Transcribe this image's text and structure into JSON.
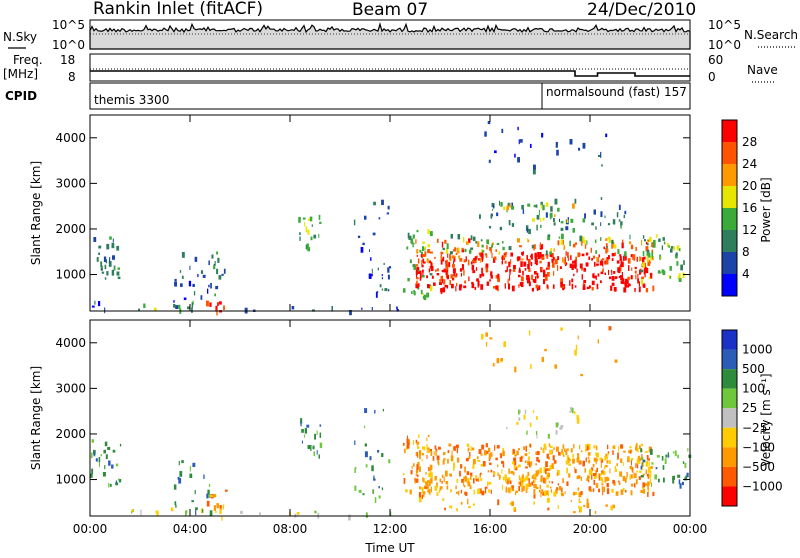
{
  "header": {
    "title": "Rankin Inlet (fitACF)",
    "beam": "Beam 07",
    "date": "24/Dec/2010"
  },
  "nsky": {
    "label": "N.Sky",
    "right_label": "N.Search",
    "ticks": [
      "10^5",
      "10^0"
    ]
  },
  "freq": {
    "label_line1": "Freq.",
    "label_line2": "[MHz]",
    "left_ticks": [
      "18",
      "8"
    ],
    "right_ticks": [
      "60",
      "0"
    ],
    "right_label": "Nave"
  },
  "cpid": {
    "label": "CPID",
    "segments": [
      {
        "text": "themis 3300"
      },
      {
        "text": "normalsound (fast) 157"
      }
    ]
  },
  "colors": {
    "power": [
      "#0000ff",
      "#1c44a8",
      "#2e7d5c",
      "#3aaa3a",
      "#e6e600",
      "#ff9900",
      "#ff5500",
      "#ff0000"
    ],
    "velocity": [
      "#1a32c8",
      "#2b5db8",
      "#2e8b3c",
      "#6ec83a",
      "#c0c0c0",
      "#ffcc00",
      "#ff9900",
      "#ff5a00",
      "#ff0000"
    ]
  },
  "chart_data": [
    {
      "type": "heatmap",
      "panel": "power",
      "ylabel": "Slant Range [km]",
      "y_ticks": [
        "1000",
        "2000",
        "3000",
        "4000"
      ],
      "ylim": [
        200,
        4500
      ],
      "x_ticks": [
        "00:00",
        "04:00",
        "08:00",
        "12:00",
        "16:00",
        "20:00",
        "00:00"
      ],
      "colorbar": {
        "label": "Power [dB]",
        "ticks": [
          "4",
          "8",
          "12",
          "16",
          "20",
          "24",
          "28"
        ],
        "range": [
          0,
          30
        ]
      }
    },
    {
      "type": "heatmap",
      "panel": "velocity",
      "ylabel": "Slant Range [km]",
      "y_ticks": [
        "1000",
        "2000",
        "3000",
        "4000"
      ],
      "ylim": [
        200,
        4500
      ],
      "x_ticks": [
        "00:00",
        "04:00",
        "08:00",
        "12:00",
        "16:00",
        "20:00",
        "00:00"
      ],
      "xlabel": "Time UT",
      "colorbar": {
        "label": "Velocity [m s⁻¹]",
        "ticks": [
          "1000",
          "500",
          "100",
          "25",
          "−25",
          "−100",
          "−500",
          "−1000"
        ]
      }
    }
  ]
}
